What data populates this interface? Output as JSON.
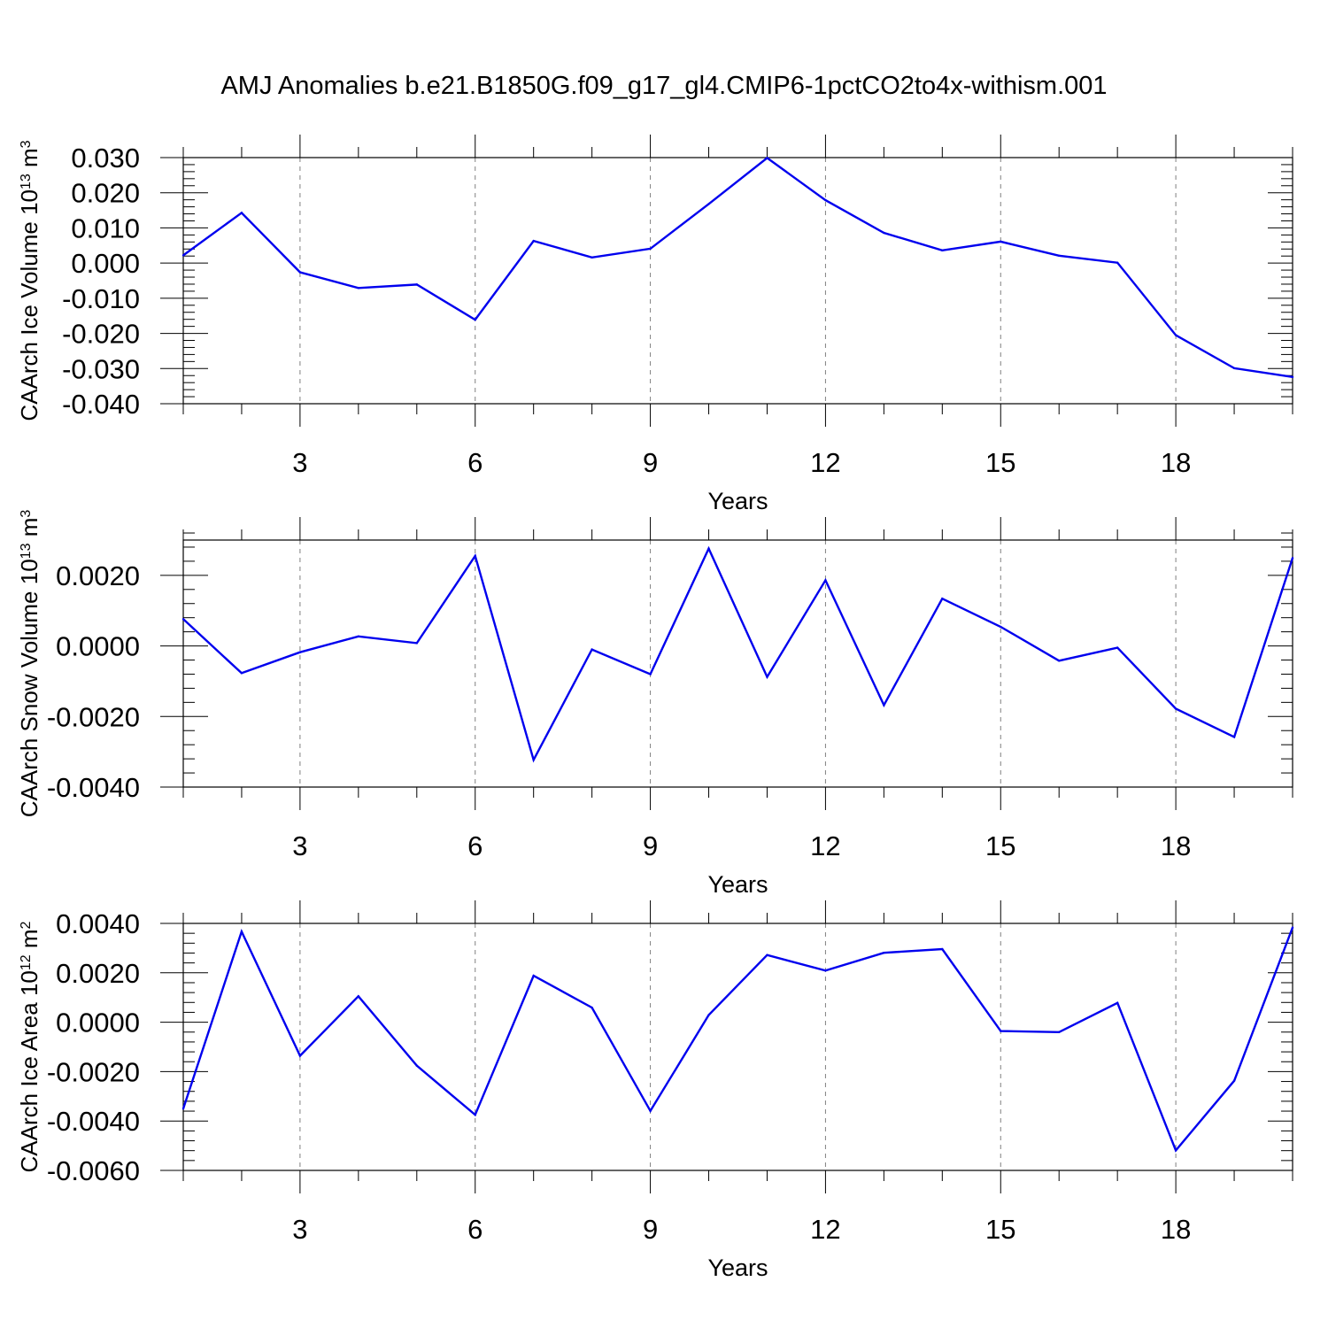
{
  "title": "AMJ Anomalies b.e21.B1850G.f09_g17_gl4.CMIP6-1pctCO2to4x-withism.001",
  "colors": {
    "line": "#0000ee",
    "axis": "#000000",
    "grid": "#808080"
  },
  "chart_data": [
    {
      "type": "line",
      "ylabel": "CAArch Ice Volume 10",
      "ylabel_sup": "13",
      "ylabel_unit": " m",
      "ylabel_unit_sup": "3",
      "xlabel": "Years",
      "xlim": [
        1,
        20
      ],
      "ylim": [
        -0.04,
        0.03
      ],
      "xticks": [
        3,
        6,
        9,
        12,
        15,
        18
      ],
      "yticks": [
        -0.04,
        -0.03,
        -0.02,
        -0.01,
        0.0,
        0.01,
        0.02,
        0.03
      ],
      "ytick_labels": [
        "-0.040",
        "-0.030",
        "-0.020",
        "-0.010",
        "0.000",
        "0.010",
        "0.020",
        "0.030"
      ],
      "x": [
        1,
        2,
        3,
        4,
        5,
        6,
        7,
        8,
        9,
        10,
        11,
        12,
        13,
        14,
        15,
        16,
        17,
        18,
        19,
        20
      ],
      "values": [
        0.0022,
        0.0143,
        -0.0026,
        -0.0071,
        -0.0061,
        -0.0161,
        0.0063,
        0.0016,
        0.0041,
        0.0168,
        0.0299,
        0.0179,
        0.0086,
        0.0036,
        0.0061,
        0.0021,
        0.0001,
        -0.0205,
        -0.0299,
        -0.0324
      ],
      "grid": "vertical dashed"
    },
    {
      "type": "line",
      "ylabel": "CAArch Snow Volume 10",
      "ylabel_sup": "13",
      "ylabel_unit": " m",
      "ylabel_unit_sup": "3",
      "xlabel": "Years",
      "xlim": [
        1,
        20
      ],
      "ylim": [
        -0.004,
        0.003
      ],
      "xticks": [
        3,
        6,
        9,
        12,
        15,
        18
      ],
      "yticks": [
        -0.004,
        -0.002,
        0.0,
        0.002
      ],
      "ytick_labels": [
        "-0.0040",
        "-0.0020",
        "0.0000",
        "0.0020"
      ],
      "x": [
        1,
        2,
        3,
        4,
        5,
        6,
        7,
        8,
        9,
        10,
        11,
        12,
        13,
        14,
        15,
        16,
        17,
        18,
        19,
        20
      ],
      "values": [
        0.00076,
        -0.00077,
        -0.00018,
        0.00027,
        8e-05,
        0.00255,
        -0.00323,
        -0.0001,
        -0.0008,
        0.00276,
        -0.00088,
        0.00186,
        -0.00168,
        0.00134,
        0.00054,
        -0.00042,
        -5e-05,
        -0.00178,
        -0.00258,
        0.00249
      ],
      "grid": "vertical dashed"
    },
    {
      "type": "line",
      "ylabel": "CAArch Ice Area 10",
      "ylabel_sup": "12",
      "ylabel_unit": " m",
      "ylabel_unit_sup": "2",
      "xlabel": "Years",
      "xlim": [
        1,
        20
      ],
      "ylim": [
        -0.006,
        0.004
      ],
      "xticks": [
        3,
        6,
        9,
        12,
        15,
        18
      ],
      "yticks": [
        -0.006,
        -0.004,
        -0.002,
        0.0,
        0.002,
        0.004
      ],
      "ytick_labels": [
        "-0.0060",
        "-0.0040",
        "-0.0020",
        "0.0000",
        "0.0020",
        "0.0040"
      ],
      "x": [
        1,
        2,
        3,
        4,
        5,
        6,
        7,
        8,
        9,
        10,
        11,
        12,
        13,
        14,
        15,
        16,
        17,
        18,
        19,
        20
      ],
      "values": [
        -0.0035,
        0.00367,
        -0.00136,
        0.00105,
        -0.00176,
        -0.00375,
        0.00188,
        0.00059,
        -0.00359,
        0.00029,
        0.00272,
        0.00209,
        0.00281,
        0.00296,
        -0.00036,
        -0.0004,
        0.00078,
        -0.00519,
        -0.00237,
        0.00383
      ],
      "grid": "vertical dashed"
    }
  ]
}
